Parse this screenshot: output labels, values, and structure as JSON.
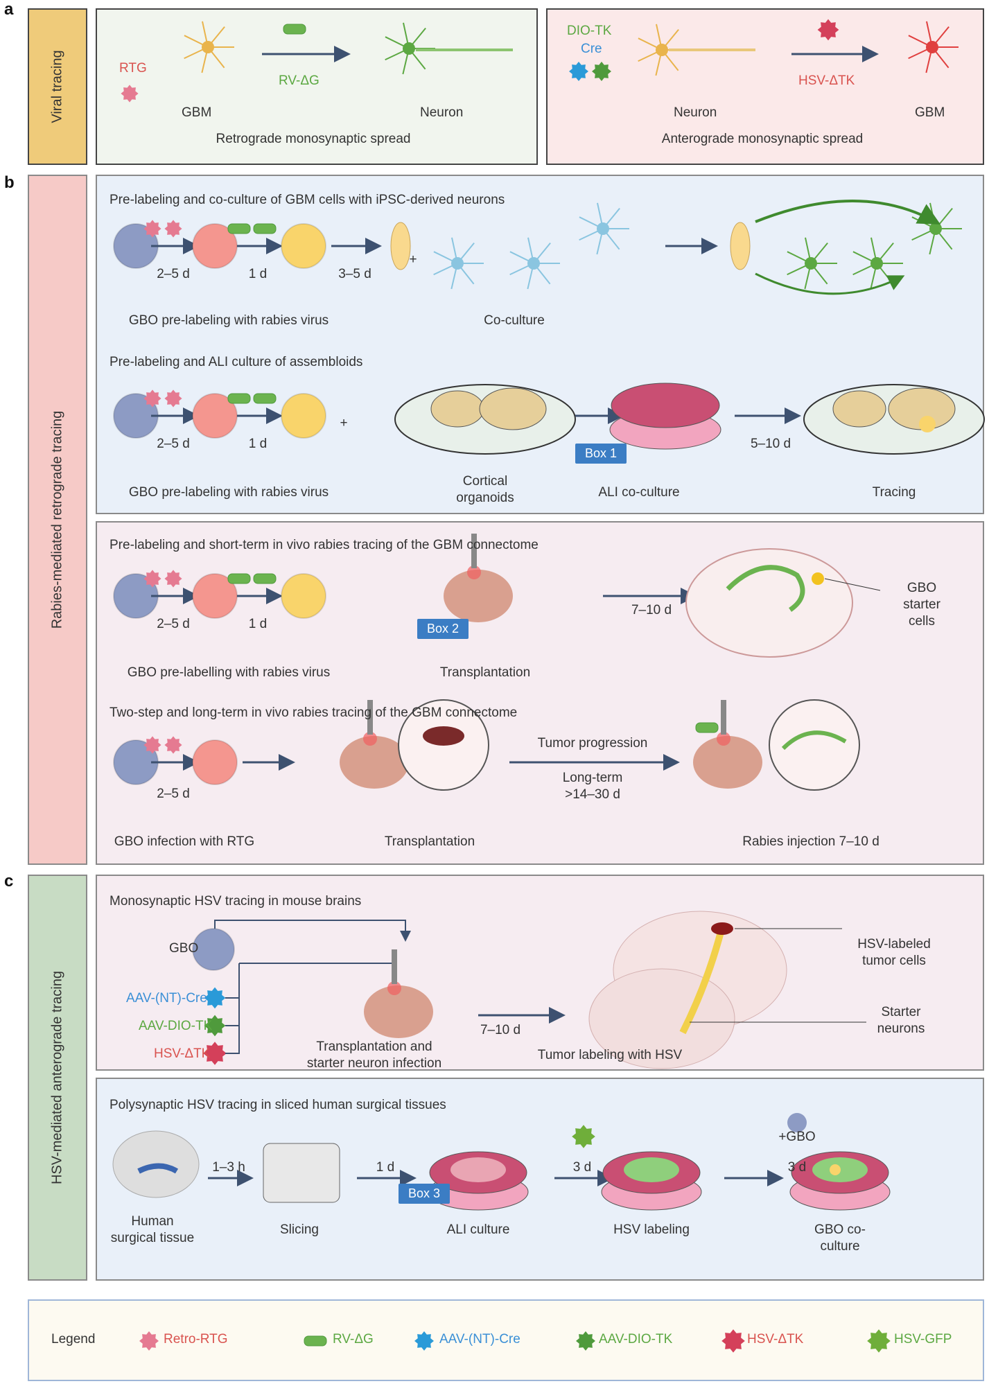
{
  "panel_labels": {
    "a": "a",
    "b": "b",
    "c": "c"
  },
  "a": {
    "side_label": "Viral tracing",
    "retro": {
      "rtg": "RTG",
      "gbm": "GBM",
      "virus": "RV-ΔG",
      "neuron": "Neuron",
      "caption": "Retrograde monosynaptic spread"
    },
    "antero": {
      "dio": "DIO-TK",
      "cre": "Cre",
      "neuron": "Neuron",
      "virus": "HSV-ΔTK",
      "gbm": "GBM",
      "caption": "Anterograde monosynaptic spread"
    }
  },
  "b": {
    "side_label": "Rabies-mediated retrograde tracing",
    "p1": {
      "heading": "Pre-labeling and co-culture of GBM cells with iPSC-derived neurons",
      "t1": "2–5 d",
      "t2": "1 d",
      "t3": "3–5 d",
      "plus": "+",
      "cap1": "GBO pre-labeling with rabies virus",
      "cap2": "Co-culture"
    },
    "p2": {
      "heading": "Pre-labeling and ALI culture of assembloids",
      "t1": "2–5 d",
      "t2": "1 d",
      "plus": "+",
      "box": "Box 1",
      "t3": "5–10 d",
      "cap1": "GBO pre-labeling with rabies virus",
      "cap2a": "Cortical",
      "cap2b": "organoids",
      "cap3": "ALI co-culture",
      "cap4": "Tracing"
    },
    "p3": {
      "heading": "Pre-labeling and short-term in vivo rabies tracing of the GBM connectome",
      "t1": "2–5 d",
      "t2": "1 d",
      "box": "Box 2",
      "t3": "7–10 d",
      "starter_a": "GBO",
      "starter_b": "starter",
      "starter_c": "cells",
      "cap1": "GBO pre-labelling with rabies virus",
      "cap2": "Transplantation"
    },
    "p4": {
      "heading": "Two-step and long-term in vivo rabies tracing of the GBM connectome",
      "t1": "2–5 d",
      "prog": "Tumor progression",
      "long_a": "Long-term",
      "long_b": ">14–30 d",
      "cap1": "GBO infection with RTG",
      "cap2": "Transplantation",
      "cap3": "Rabies injection 7–10 d"
    }
  },
  "c": {
    "side_label": "HSV-mediated anterograde tracing",
    "p1": {
      "heading": "Monosynaptic HSV tracing in mouse brains",
      "gbo": "GBO",
      "cre": "AAV-(NT)-Cre",
      "dio": "AAV-DIO-TK",
      "hsv": "HSV-ΔTK",
      "t1": "7–10 d",
      "cap1a": "Transplantation and",
      "cap1b": "starter neuron infection",
      "cap2": "Tumor labeling with HSV",
      "lab1a": "HSV-labeled",
      "lab1b": "tumor cells",
      "lab2a": "Starter",
      "lab2b": "neurons"
    },
    "p2": {
      "heading": "Polysynaptic HSV tracing in sliced human surgical tissues",
      "t1": "1–3 h",
      "t2": "1 d",
      "box": "Box 3",
      "t3": "3 d",
      "gbo": "+GBO",
      "t4": "3 d",
      "cap1a": "Human",
      "cap1b": "surgical tissue",
      "cap2": "Slicing",
      "cap3": "ALI culture",
      "cap4": "HSV labeling",
      "cap5a": "GBO co-",
      "cap5b": "culture"
    }
  },
  "legend": {
    "title": "Legend",
    "items": [
      {
        "label": "Retro-RTG",
        "icon": "rtg-virus-icon",
        "color": "#e06377"
      },
      {
        "label": "RV-ΔG",
        "icon": "rabies-virus-icon",
        "color": "#6bb34f"
      },
      {
        "label": "AAV-(NT)-Cre",
        "icon": "aav-cre-icon",
        "color": "#2a9ad8"
      },
      {
        "label": "AAV-DIO-TK",
        "icon": "aav-dio-tk-icon",
        "color": "#4f9a3c"
      },
      {
        "label": "HSV-ΔTK",
        "icon": "hsv-dtk-icon",
        "color": "#d4405a"
      },
      {
        "label": "HSV-GFP",
        "icon": "hsv-gfp-icon",
        "color": "#6fae3a"
      }
    ]
  },
  "colors": {
    "viral_tracing": "#efcb7a",
    "rabies": "#f6cac7",
    "hsv": "#c8dcc4",
    "panel_blue": "#e9f0f9",
    "panel_pink": "#f6ecf1",
    "box_button": "#3b7dc4"
  }
}
